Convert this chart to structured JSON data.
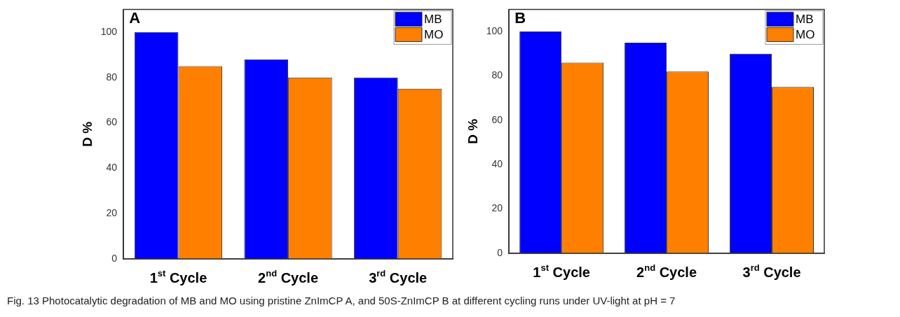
{
  "chart_data": [
    {
      "type": "bar",
      "title": "A",
      "ylabel": "D %",
      "categories": [
        "1$^{st}$ Cycle",
        "2$^{nd}$ Cycle",
        "3$^{rd}$ Cycle"
      ],
      "series": [
        {
          "name": "MB",
          "color": "#0000ff",
          "values": [
            100,
            88,
            80
          ]
        },
        {
          "name": "MO",
          "color": "#ff7f00",
          "values": [
            85,
            80,
            75
          ]
        }
      ],
      "ylim": [
        0,
        110
      ],
      "yticks": [
        0,
        20,
        40,
        60,
        80,
        100
      ],
      "legend": "top right"
    },
    {
      "type": "bar",
      "title": "B",
      "ylabel": "D %",
      "categories": [
        "1$^{st}$ Cycle",
        "2$^{nd}$ Cycle",
        "3$^{rd}$ Cycle"
      ],
      "series": [
        {
          "name": "MB",
          "color": "#0000ff",
          "values": [
            100,
            95,
            90
          ]
        },
        {
          "name": "MO",
          "color": "#ff7f00",
          "values": [
            86,
            82,
            75
          ]
        }
      ],
      "ylim": [
        0,
        110
      ],
      "yticks": [
        0,
        20,
        40,
        60,
        80,
        100
      ],
      "legend": "top right",
      "annotations": [
        "Fig. 13  Photocatalytic degradation of MB and MO using pristine ZnImCP A, and 50S-ZnImCP B at different cycling runs under UV-light at pH = 7"
      ]
    }
  ]
}
